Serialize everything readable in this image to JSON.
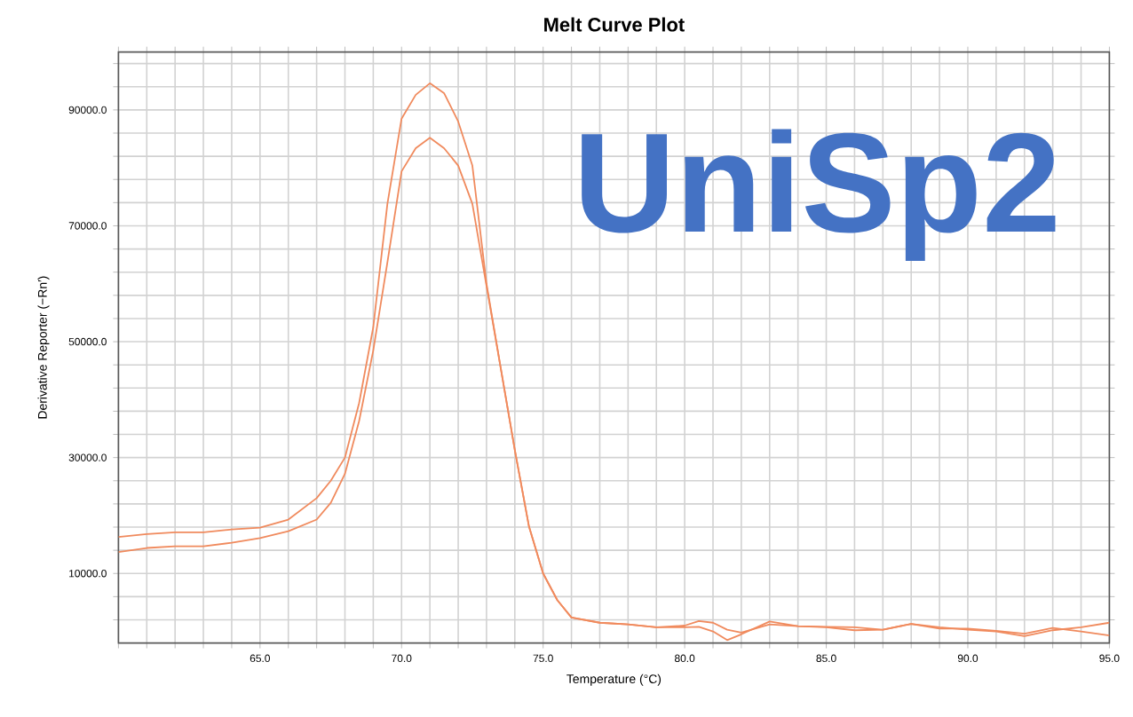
{
  "chart_data": {
    "type": "line",
    "title": "Melt Curve Plot",
    "xlabel": "Temperature (°C)",
    "ylabel": "Derivative Reporter (−Rn′)",
    "annotations": [
      "UniSp2"
    ],
    "series": [
      {
        "color": "#f08a5d",
        "x": [
          60,
          61,
          62,
          63,
          64,
          65,
          66,
          67,
          67.5,
          68,
          68.5,
          69,
          69.5,
          70,
          70.5,
          71,
          71.5,
          72,
          72.5,
          73,
          73.5,
          74,
          74.5,
          75,
          75.5,
          76,
          77,
          78,
          79,
          80,
          80.5,
          81,
          81.5,
          82,
          83,
          84,
          85,
          86,
          87,
          88,
          89,
          90,
          91,
          92,
          93,
          94,
          95
        ],
        "values": [
          16300,
          16800,
          17100,
          17100,
          17600,
          17900,
          19300,
          23000,
          26000,
          30000,
          39400,
          52500,
          73800,
          88500,
          92600,
          94600,
          92900,
          88000,
          80400,
          60000,
          45500,
          31300,
          18100,
          10000,
          5400,
          2400,
          1500,
          1200,
          700,
          1000,
          1800,
          1500,
          300,
          -200,
          1200,
          900,
          800,
          700,
          300,
          1300,
          700,
          300,
          0,
          -800,
          200,
          700,
          1500
        ]
      },
      {
        "color": "#f08a5d",
        "x": [
          60,
          61,
          62,
          63,
          64,
          65,
          66,
          67,
          67.5,
          68,
          68.5,
          69,
          69.5,
          70,
          70.5,
          71,
          71.5,
          72,
          72.5,
          73,
          73.5,
          74,
          74.5,
          75,
          75.5,
          76,
          77,
          78,
          79,
          80,
          80.5,
          81,
          81.5,
          82,
          83,
          84,
          85,
          86,
          87,
          88,
          89,
          90,
          91,
          92,
          93,
          94,
          95
        ],
        "values": [
          13700,
          14400,
          14700,
          14700,
          15300,
          16100,
          17300,
          19300,
          22200,
          27200,
          36300,
          48500,
          63700,
          79400,
          83400,
          85200,
          83400,
          80400,
          73800,
          59600,
          45500,
          31300,
          18100,
          10000,
          5400,
          2400,
          1500,
          1200,
          700,
          700,
          800,
          0,
          -1500,
          -500,
          1700,
          900,
          700,
          200,
          300,
          1300,
          500,
          500,
          100,
          -400,
          600,
          0,
          -700
        ]
      }
    ],
    "xlim": [
      60,
      95
    ],
    "ylim": [
      -2000,
      100000
    ],
    "xticks": [
      {
        "value": 60,
        "label": null
      },
      {
        "value": 61,
        "label": null
      },
      {
        "value": 62,
        "label": null
      },
      {
        "value": 63,
        "label": null
      },
      {
        "value": 64,
        "label": null
      },
      {
        "value": 65,
        "label": "65.0"
      },
      {
        "value": 66,
        "label": null
      },
      {
        "value": 67,
        "label": null
      },
      {
        "value": 68,
        "label": null
      },
      {
        "value": 69,
        "label": null
      },
      {
        "value": 70,
        "label": "70.0"
      },
      {
        "value": 71,
        "label": null
      },
      {
        "value": 72,
        "label": null
      },
      {
        "value": 73,
        "label": null
      },
      {
        "value": 74,
        "label": null
      },
      {
        "value": 75,
        "label": "75.0"
      },
      {
        "value": 76,
        "label": null
      },
      {
        "value": 77,
        "label": null
      },
      {
        "value": 78,
        "label": null
      },
      {
        "value": 79,
        "label": null
      },
      {
        "value": 80,
        "label": "80.0"
      },
      {
        "value": 81,
        "label": null
      },
      {
        "value": 82,
        "label": null
      },
      {
        "value": 83,
        "label": null
      },
      {
        "value": 84,
        "label": null
      },
      {
        "value": 85,
        "label": "85.0"
      },
      {
        "value": 86,
        "label": null
      },
      {
        "value": 87,
        "label": null
      },
      {
        "value": 88,
        "label": null
      },
      {
        "value": 89,
        "label": null
      },
      {
        "value": 90,
        "label": "90.0"
      },
      {
        "value": 91,
        "label": null
      },
      {
        "value": 92,
        "label": null
      },
      {
        "value": 93,
        "label": null
      },
      {
        "value": 94,
        "label": null
      },
      {
        "value": 95,
        "label": "95.0"
      }
    ],
    "yticks": [
      {
        "value": 2000,
        "label": null
      },
      {
        "value": 6000,
        "label": null
      },
      {
        "value": 10000,
        "label": "10000.0"
      },
      {
        "value": 14000,
        "label": null
      },
      {
        "value": 18000,
        "label": null
      },
      {
        "value": 22000,
        "label": null
      },
      {
        "value": 26000,
        "label": null
      },
      {
        "value": 30000,
        "label": "30000.0"
      },
      {
        "value": 34000,
        "label": null
      },
      {
        "value": 38000,
        "label": null
      },
      {
        "value": 42000,
        "label": null
      },
      {
        "value": 46000,
        "label": null
      },
      {
        "value": 50000,
        "label": "50000.0"
      },
      {
        "value": 54000,
        "label": null
      },
      {
        "value": 58000,
        "label": null
      },
      {
        "value": 62000,
        "label": null
      },
      {
        "value": 66000,
        "label": null
      },
      {
        "value": 70000,
        "label": "70000.0"
      },
      {
        "value": 74000,
        "label": null
      },
      {
        "value": 78000,
        "label": null
      },
      {
        "value": 82000,
        "label": null
      },
      {
        "value": 86000,
        "label": null
      },
      {
        "value": 90000,
        "label": "90000.0"
      },
      {
        "value": 94000,
        "label": null
      },
      {
        "value": 98000,
        "label": null
      }
    ],
    "grid": true,
    "marker": "none",
    "line_style": "solid"
  }
}
